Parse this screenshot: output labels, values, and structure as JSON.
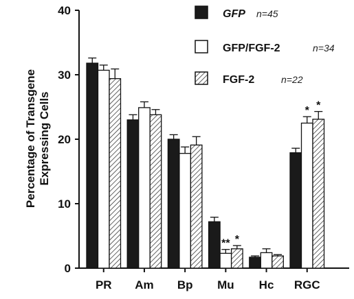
{
  "chart_data": {
    "type": "bar",
    "ylabel_lines": [
      "Percentage of Transgene",
      "Expressing Cells"
    ],
    "categories": [
      "PR",
      "Am",
      "Bp",
      "Mu",
      "Hc",
      "RGC"
    ],
    "ylim": [
      0,
      40
    ],
    "yticks": [
      0,
      10,
      20,
      30,
      40
    ],
    "series": [
      {
        "name": "GFP",
        "n_label": "n=45",
        "pattern": "solid",
        "values": [
          31.8,
          23.0,
          20.0,
          7.2,
          1.7,
          17.9
        ],
        "errors": [
          0.8,
          0.8,
          0.7,
          0.7,
          0.2,
          0.7
        ],
        "stars": [
          "",
          "",
          "",
          "",
          "",
          ""
        ]
      },
      {
        "name": "GFP/FGF-2",
        "n_label": "n=34",
        "pattern": "open",
        "values": [
          30.7,
          24.9,
          17.8,
          2.3,
          2.4,
          22.5
        ],
        "errors": [
          0.8,
          0.9,
          1.0,
          0.6,
          0.6,
          1.0
        ],
        "stars": [
          "",
          "",
          "",
          "**",
          "",
          "*"
        ]
      },
      {
        "name": "FGF-2",
        "n_label": "n=22",
        "pattern": "hatched",
        "values": [
          29.4,
          23.8,
          19.1,
          3.0,
          1.9,
          23.1
        ],
        "errors": [
          1.5,
          0.8,
          1.3,
          0.5,
          0.2,
          1.2
        ],
        "stars": [
          "",
          "",
          "",
          "*",
          "",
          "*"
        ]
      }
    ],
    "legend_position": "top-right",
    "grid": false,
    "colors": {
      "solid": "#1a1a1a",
      "open": "#ffffff",
      "stroke": "#111111"
    }
  }
}
